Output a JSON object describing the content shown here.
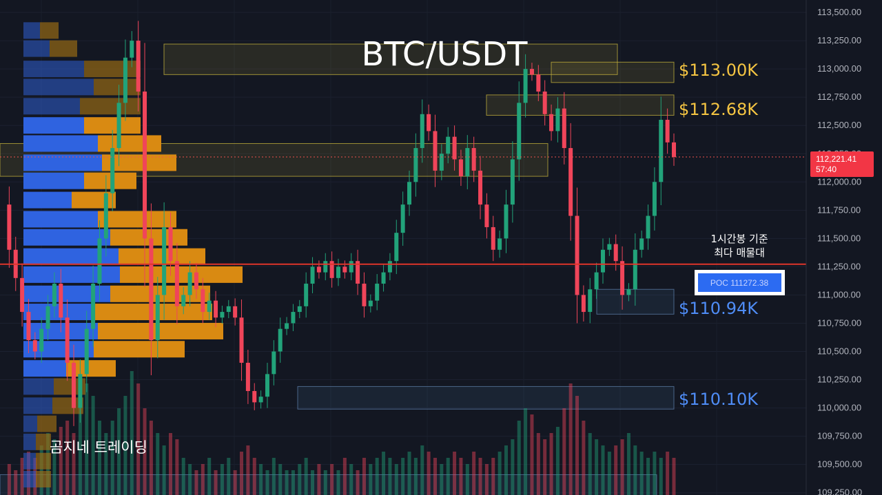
{
  "chart_data": {
    "type": "candlestick",
    "title": "BTC/USDT",
    "y_ticks": [
      "113,500.00",
      "113,250.00",
      "113,000.00",
      "112,750.00",
      "112,500.00",
      "112,250.00",
      "112,000.00",
      "111,750.00",
      "111,500.00",
      "111,250.00",
      "111,000.00",
      "110,750.00",
      "110,500.00",
      "110,250.00",
      "110,000.00",
      "109,750.00",
      "109,500.00",
      "109,250.00"
    ],
    "ylim": [
      109230,
      113610
    ],
    "current_price": {
      "value": 112221.41,
      "label": "112,221.41",
      "countdown": "57:40"
    },
    "poc": {
      "value": 111272.38,
      "label": "POC  111272.38",
      "note_line1": "1시간봉 기준",
      "note_line2": "최다 매물대"
    },
    "levels": [
      {
        "label": "$113.00K",
        "value": 113000,
        "color": "#f5c542"
      },
      {
        "label": "$112.68K",
        "value": 112680,
        "color": "#f5c542"
      },
      {
        "label": "$110.94K",
        "value": 110940,
        "color": "#4f8df7"
      },
      {
        "label": "$110.10K",
        "value": 110100,
        "color": "#4f8df7"
      }
    ],
    "zones": [
      {
        "type": "resistance",
        "from": 112950,
        "to": 113220
      },
      {
        "type": "resistance",
        "from": 112880,
        "to": 113060
      },
      {
        "type": "resistance",
        "from": 112590,
        "to": 112770
      },
      {
        "type": "resistance",
        "from": 112050,
        "to": 112340
      },
      {
        "type": "support",
        "from": 110830,
        "to": 111050
      },
      {
        "type": "support",
        "from": 109990,
        "to": 110190
      },
      {
        "type": "support",
        "from": 109150,
        "to": 109410
      }
    ],
    "volume_profile": [
      {
        "price": 113340,
        "buy": 24,
        "sell": 27
      },
      {
        "price": 113180,
        "buy": 38,
        "sell": 40
      },
      {
        "price": 113000,
        "buy": 88,
        "sell": 82
      },
      {
        "price": 112840,
        "buy": 102,
        "sell": 68
      },
      {
        "price": 112670,
        "buy": 82,
        "sell": 88
      },
      {
        "price": 112500,
        "buy": 88,
        "sell": 82
      },
      {
        "price": 112340,
        "buy": 108,
        "sell": 92
      },
      {
        "price": 112170,
        "buy": 114,
        "sell": 108
      },
      {
        "price": 112010,
        "buy": 88,
        "sell": 76
      },
      {
        "price": 111840,
        "buy": 70,
        "sell": 64
      },
      {
        "price": 111670,
        "buy": 108,
        "sell": 114
      },
      {
        "price": 111510,
        "buy": 126,
        "sell": 112
      },
      {
        "price": 111340,
        "buy": 138,
        "sell": 126
      },
      {
        "price": 111180,
        "buy": 140,
        "sell": 178
      },
      {
        "price": 111010,
        "buy": 126,
        "sell": 145
      },
      {
        "price": 110850,
        "buy": 102,
        "sell": 172
      },
      {
        "price": 110680,
        "buy": 108,
        "sell": 182
      },
      {
        "price": 110520,
        "buy": 102,
        "sell": 132
      },
      {
        "price": 110350,
        "buy": 62,
        "sell": 72
      },
      {
        "price": 110190,
        "buy": 44,
        "sell": 46
      },
      {
        "price": 110020,
        "buy": 42,
        "sell": 45
      },
      {
        "price": 109860,
        "buy": 20,
        "sell": 28
      },
      {
        "price": 109700,
        "buy": 18,
        "sell": 22
      },
      {
        "price": 109530,
        "buy": 18,
        "sell": 22
      },
      {
        "price": 109370,
        "buy": 18,
        "sell": 22
      }
    ],
    "price_path": [
      111800,
      111400,
      111150,
      110850,
      110600,
      110500,
      110700,
      110900,
      111100,
      110800,
      110400,
      110000,
      110300,
      110700,
      111100,
      111500,
      111900,
      112300,
      112700,
      113100,
      113250,
      112800,
      111500,
      110600,
      111000,
      111600,
      111300,
      110900,
      111000,
      111200,
      111050,
      110850,
      110950,
      110800,
      110850,
      110900,
      110800,
      110400,
      110150,
      110050,
      110100,
      110300,
      110500,
      110700,
      110750,
      110850,
      110900,
      111100,
      111250,
      111200,
      111300,
      111150,
      111250,
      111200,
      111300,
      111100,
      110900,
      110950,
      111100,
      111200,
      111300,
      111550,
      111800,
      112000,
      112300,
      112600,
      112450,
      112100,
      112250,
      112400,
      112200,
      112050,
      112300,
      112100,
      111800,
      111600,
      111400,
      111500,
      111800,
      112200,
      112700,
      113000,
      112950,
      112800,
      112600,
      112450,
      112650,
      112300,
      111700,
      111000,
      110850,
      111050,
      111200,
      111400,
      111450,
      111300,
      111000,
      111050,
      111400,
      111500,
      111700,
      112000,
      112550,
      112350,
      112221
    ],
    "volume": [
      0.3,
      0.25,
      0.2,
      0.3,
      0.35,
      0.3,
      0.4,
      0.5,
      0.45,
      0.55,
      0.6,
      0.5,
      0.7,
      0.9,
      0.8,
      0.6,
      0.5,
      0.6,
      0.7,
      0.8,
      1.0,
      0.9,
      0.7,
      0.6,
      0.5,
      0.4,
      0.5,
      0.45,
      0.3,
      0.25,
      0.2,
      0.25,
      0.3,
      0.2,
      0.25,
      0.3,
      0.2,
      0.35,
      0.4,
      0.3,
      0.25,
      0.2,
      0.3,
      0.25,
      0.2,
      0.2,
      0.25,
      0.3,
      0.2,
      0.25,
      0.2,
      0.25,
      0.2,
      0.3,
      0.25,
      0.2,
      0.3,
      0.25,
      0.3,
      0.35,
      0.3,
      0.25,
      0.3,
      0.35,
      0.3,
      0.4,
      0.35,
      0.3,
      0.25,
      0.3,
      0.35,
      0.3,
      0.25,
      0.35,
      0.3,
      0.25,
      0.3,
      0.35,
      0.4,
      0.45,
      0.6,
      0.7,
      0.65,
      0.5,
      0.45,
      0.5,
      0.55,
      0.7,
      0.9,
      0.8,
      0.6,
      0.5,
      0.45,
      0.4,
      0.35,
      0.4,
      0.45,
      0.5,
      0.4,
      0.35,
      0.3,
      0.35,
      0.3,
      0.35,
      0.3
    ]
  },
  "watermark": "곰지네 트레이딩"
}
